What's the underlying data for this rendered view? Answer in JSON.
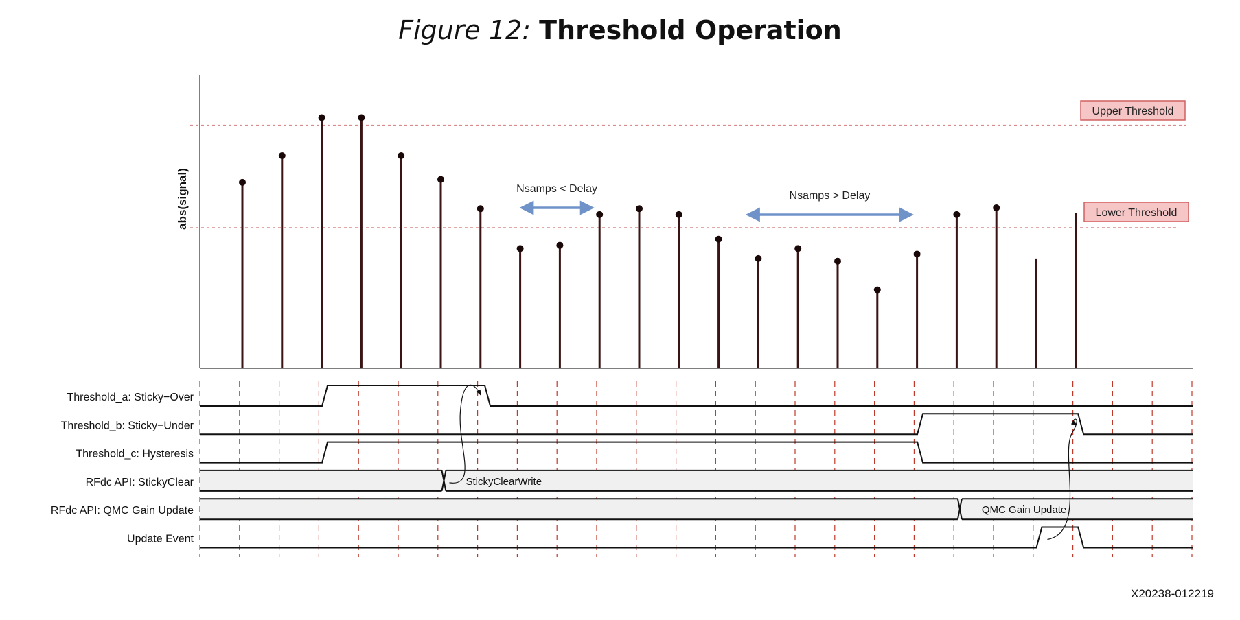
{
  "figure": {
    "number_label": "Figure 12:",
    "title": "Threshold Operation",
    "doc_id": "X20238-012219"
  },
  "plot": {
    "y_axis_label": "abs(signal)",
    "upper_threshold_label": "Upper Threshold",
    "lower_threshold_label": "Lower Threshold",
    "colors": {
      "stem": "#3a1414",
      "threshold_line": "#d98a8a",
      "threshold_box_fill": "#f6c6c6",
      "threshold_box_stroke": "#d06060",
      "arrow": "#6f92c8",
      "axis": "#555555"
    },
    "samples": [
      0.635,
      0.726,
      0.856,
      0.856,
      0.726,
      0.645,
      0.545,
      0.409,
      0.42,
      0.525,
      0.545,
      0.525,
      0.441,
      0.375,
      0.409,
      0.366,
      0.268,
      0.39,
      0.525,
      0.548,
      0.375,
      0.53
    ],
    "sample_markers": [
      true,
      true,
      true,
      true,
      true,
      true,
      true,
      true,
      true,
      true,
      true,
      true,
      true,
      true,
      true,
      true,
      true,
      true,
      true,
      true,
      false,
      false
    ],
    "upper_threshold": 0.83,
    "lower_threshold": 0.48,
    "delay_annotations": [
      {
        "label": "Nsamps < Delay",
        "from_sample": 7.0,
        "to_sample": 8.85
      },
      {
        "label": "Nsamps > Delay",
        "from_sample": 12.7,
        "to_sample": 16.9
      }
    ]
  },
  "timing": {
    "signals": [
      {
        "label": "Threshold_a: Sticky−Over",
        "type": "digital",
        "edges": [
          3.15,
          7.25
        ]
      },
      {
        "label": "Threshold_b: Sticky−Under",
        "type": "digital",
        "edges": [
          18.15,
          22.2
        ]
      },
      {
        "label": "Threshold_c: Hysteresis",
        "type": "digital",
        "edges": [
          3.15,
          18.15
        ]
      },
      {
        "label": "RFdc API: StickyClear",
        "type": "bus",
        "transition": 6.15,
        "bus_text": "StickyClearWrite"
      },
      {
        "label": "RFdc API: QMC Gain Update",
        "type": "bus",
        "transition": 19.15,
        "bus_text": "QMC Gain Update"
      },
      {
        "label": "Update Event",
        "type": "digital",
        "edges": [
          21.15,
          22.2
        ]
      }
    ],
    "clock_marks": 26
  }
}
